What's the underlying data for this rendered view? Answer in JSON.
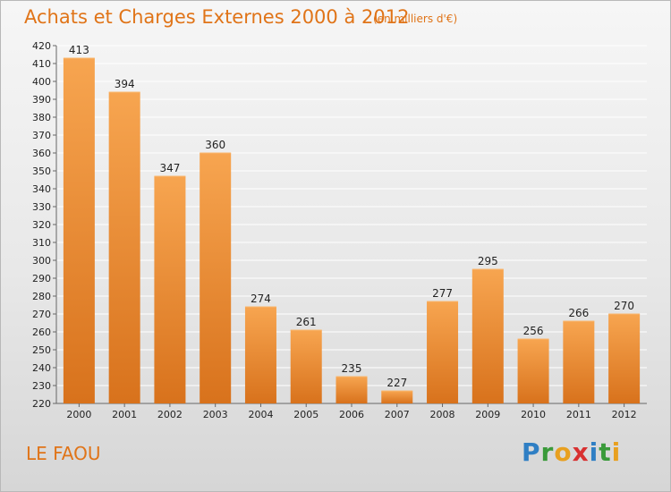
{
  "title": "Achats et Charges Externes 2000 à 2012",
  "subtitle": "(en milliers d'€)",
  "place": "LE FAOU",
  "logo": {
    "letters": [
      "P",
      "r",
      "o",
      "x",
      "i",
      "t",
      "i"
    ],
    "colors": [
      "#2f7fc4",
      "#3a9a3a",
      "#e8a020",
      "#d83030",
      "#2f7fc4",
      "#3a9a3a",
      "#e8a020"
    ]
  },
  "colors": {
    "accent": "#e07418",
    "bar_light": "#f7a550",
    "bar_dark": "#d9731e",
    "grid": "#ffffff"
  },
  "chart_data": {
    "type": "bar",
    "title": "Achats et Charges Externes 2000 à 2012",
    "subtitle": "(en milliers d'€)",
    "categories": [
      "2000",
      "2001",
      "2002",
      "2003",
      "2004",
      "2005",
      "2006",
      "2007",
      "2008",
      "2009",
      "2010",
      "2011",
      "2012"
    ],
    "values": [
      413,
      394,
      347,
      360,
      274,
      261,
      235,
      227,
      277,
      295,
      256,
      266,
      270
    ],
    "ylim": [
      220,
      420
    ],
    "ytick_step": 10,
    "grid": true,
    "legend": "none",
    "xlabel": "",
    "ylabel": ""
  }
}
